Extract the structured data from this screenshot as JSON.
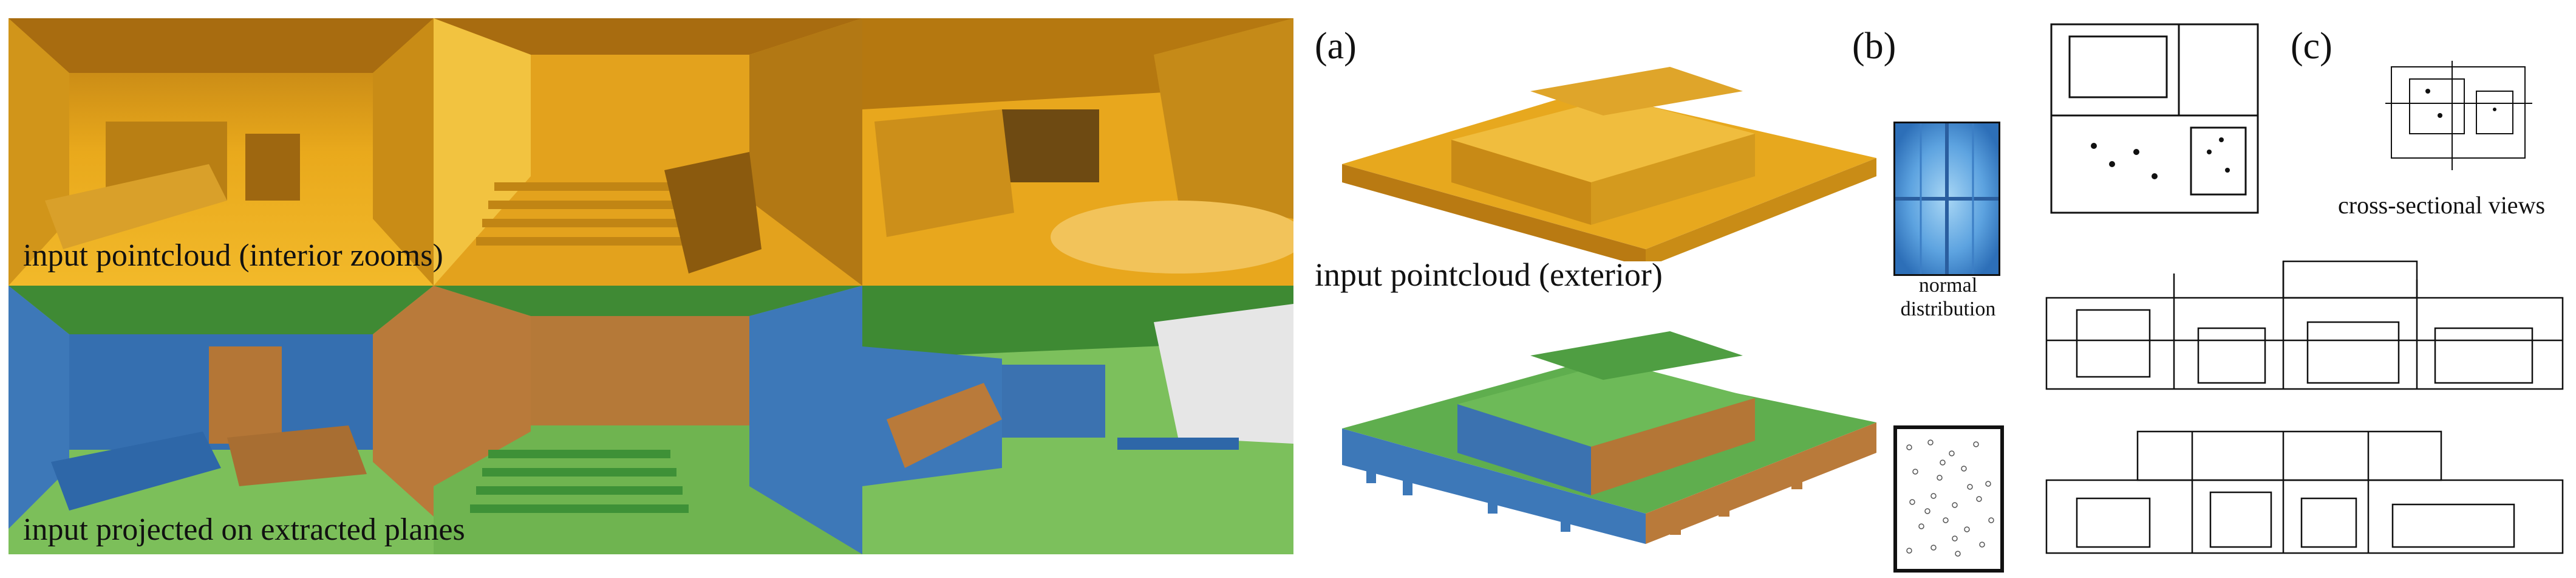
{
  "figure": {
    "left_grid": {
      "top_caption": "input pointcloud (interior zooms)",
      "bottom_caption": "input projected on extracted planes"
    },
    "panel_a": {
      "letter": "(a)",
      "caption": "input pointcloud (exterior)"
    },
    "panel_b": {
      "letter": "(b)",
      "caption_line1": "normal",
      "caption_line2": "distribution"
    },
    "panel_c": {
      "letter": "(c)",
      "caption": "cross-sectional views"
    },
    "colors": {
      "pointcloud": "#E7A81E",
      "plane_green": "#5FAE4E",
      "plane_blue": "#3D78B8",
      "plane_orange": "#B97A3A"
    }
  }
}
